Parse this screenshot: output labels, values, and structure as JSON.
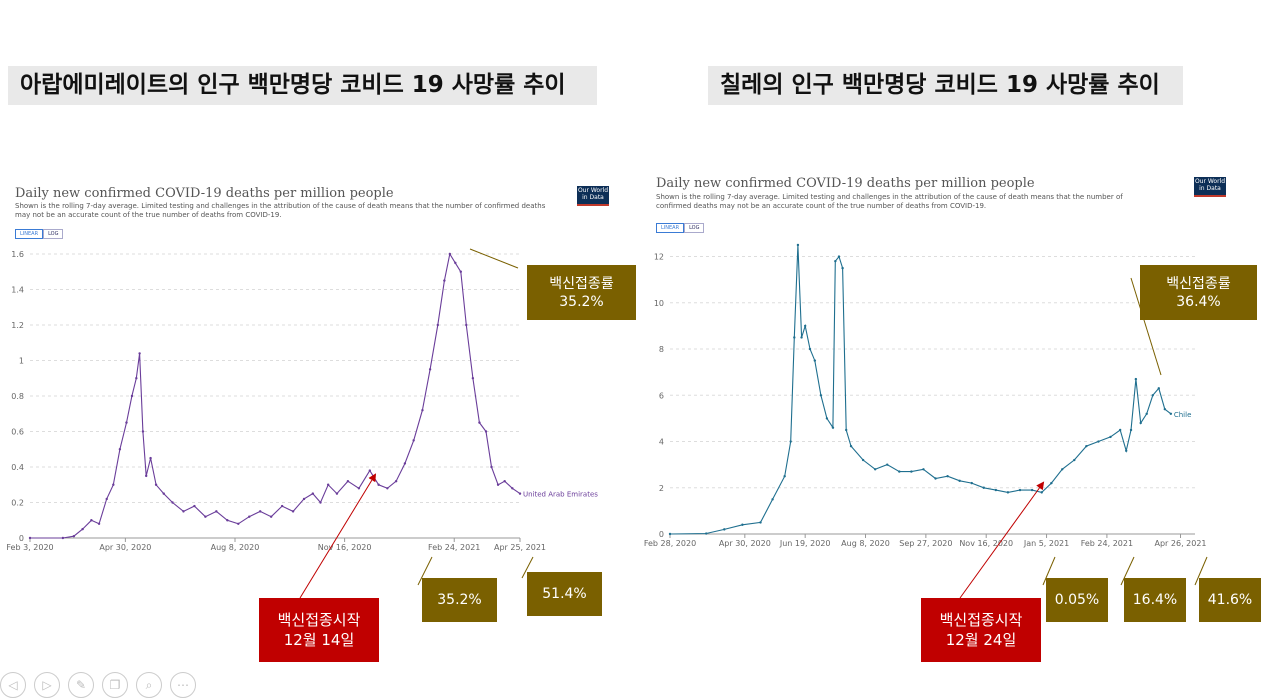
{
  "slide": {
    "title_left": "아랍에미레이트의 인구 백만명당 코비드 19 사망률 추이",
    "title_right": "칠레의 인구 백만명당 코비드 19 사망률 추이"
  },
  "callouts_left": {
    "vaccine_rate_label": "백신접종률",
    "vaccine_rate_value": "35.2%",
    "start_label": "백신접종시작",
    "start_date": "12월 14일",
    "feb_value": "35.2%",
    "apr_value": "51.4%"
  },
  "callouts_right": {
    "vaccine_rate_label": "백신접종률",
    "vaccine_rate_value": "36.4%",
    "start_label": "백신접종시작",
    "start_date": "12월 24일",
    "jan_value": "0.05%",
    "feb_value": "16.4%",
    "apr_value": "41.6%"
  },
  "colors": {
    "uae_line": "#6a3d9a",
    "chile_line": "#1f6f8f",
    "callout_gold": "#7a6000",
    "callout_red": "#c00000"
  },
  "chart_data": [
    {
      "type": "line",
      "title": "Daily new confirmed COVID-19 deaths per million people",
      "subtitle": "Shown is the rolling 7-day average. Limited testing and challenges in the attribution of the cause of death means that the number of confirmed deaths may not be an accurate count of the true number of deaths from COVID-19.",
      "logo": "Our World in Data",
      "toggle": [
        "LINEAR",
        "LOG"
      ],
      "series_label": "United Arab Emirates",
      "x_ticks": [
        "Feb 3, 2020",
        "Apr 30, 2020",
        "Aug 8, 2020",
        "Nov 16, 2020",
        "Feb 24, 2021",
        "Apr 25, 2021"
      ],
      "x_tick_days": [
        0,
        87,
        187,
        287,
        387,
        447
      ],
      "y_ticks": [
        "0",
        "0.2",
        "0.4",
        "0.6",
        "0.8",
        "1",
        "1.2",
        "1.4",
        "1.6"
      ],
      "ylim": [
        0,
        1.6
      ],
      "xlim_days": [
        0,
        447
      ],
      "points": [
        [
          0,
          0
        ],
        [
          30,
          0
        ],
        [
          40,
          0.01
        ],
        [
          48,
          0.05
        ],
        [
          56,
          0.1
        ],
        [
          63,
          0.08
        ],
        [
          70,
          0.22
        ],
        [
          76,
          0.3
        ],
        [
          82,
          0.5
        ],
        [
          88,
          0.65
        ],
        [
          93,
          0.8
        ],
        [
          97,
          0.9
        ],
        [
          100,
          1.04
        ],
        [
          103,
          0.6
        ],
        [
          106,
          0.35
        ],
        [
          110,
          0.45
        ],
        [
          115,
          0.3
        ],
        [
          122,
          0.25
        ],
        [
          130,
          0.2
        ],
        [
          140,
          0.15
        ],
        [
          150,
          0.18
        ],
        [
          160,
          0.12
        ],
        [
          170,
          0.15
        ],
        [
          180,
          0.1
        ],
        [
          190,
          0.08
        ],
        [
          200,
          0.12
        ],
        [
          210,
          0.15
        ],
        [
          220,
          0.12
        ],
        [
          230,
          0.18
        ],
        [
          240,
          0.15
        ],
        [
          250,
          0.22
        ],
        [
          258,
          0.25
        ],
        [
          265,
          0.2
        ],
        [
          272,
          0.3
        ],
        [
          280,
          0.25
        ],
        [
          290,
          0.32
        ],
        [
          300,
          0.28
        ],
        [
          310,
          0.38
        ],
        [
          318,
          0.3
        ],
        [
          326,
          0.28
        ],
        [
          334,
          0.32
        ],
        [
          342,
          0.42
        ],
        [
          350,
          0.55
        ],
        [
          358,
          0.72
        ],
        [
          365,
          0.95
        ],
        [
          372,
          1.2
        ],
        [
          378,
          1.45
        ],
        [
          383,
          1.6
        ],
        [
          388,
          1.55
        ],
        [
          393,
          1.5
        ],
        [
          398,
          1.2
        ],
        [
          404,
          0.9
        ],
        [
          410,
          0.65
        ],
        [
          416,
          0.6
        ],
        [
          421,
          0.4
        ],
        [
          427,
          0.3
        ],
        [
          433,
          0.32
        ],
        [
          440,
          0.28
        ],
        [
          447,
          0.25
        ]
      ]
    },
    {
      "type": "line",
      "title": "Daily new confirmed COVID-19 deaths per million people",
      "subtitle": "Shown is the rolling 7-day average. Limited testing and challenges in the attribution of the cause of death means that the number of confirmed deaths may not be an accurate count of the true number of deaths from COVID-19.",
      "logo": "Our World in Data",
      "toggle": [
        "LINEAR",
        "LOG"
      ],
      "series_label": "Chile",
      "x_ticks": [
        "Feb 28, 2020",
        "Apr 30, 2020",
        "Jun 19, 2020",
        "Aug 8, 2020",
        "Sep 27, 2020",
        "Nov 16, 2020",
        "Jan 5, 2021",
        "Feb 24, 2021",
        "Apr 26, 2021"
      ],
      "x_tick_days": [
        0,
        62,
        112,
        162,
        212,
        262,
        312,
        362,
        423
      ],
      "y_ticks": [
        "0",
        "2",
        "4",
        "6",
        "8",
        "10",
        "12"
      ],
      "ylim": [
        0,
        12.5
      ],
      "xlim_days": [
        0,
        435
      ],
      "points": [
        [
          0,
          0
        ],
        [
          30,
          0.02
        ],
        [
          45,
          0.2
        ],
        [
          60,
          0.4
        ],
        [
          75,
          0.5
        ],
        [
          85,
          1.5
        ],
        [
          95,
          2.5
        ],
        [
          100,
          4
        ],
        [
          103,
          8.5
        ],
        [
          106,
          12.5
        ],
        [
          109,
          8.5
        ],
        [
          112,
          9
        ],
        [
          116,
          8
        ],
        [
          120,
          7.5
        ],
        [
          125,
          6
        ],
        [
          130,
          5
        ],
        [
          135,
          4.6
        ],
        [
          137,
          11.8
        ],
        [
          140,
          12
        ],
        [
          143,
          11.5
        ],
        [
          146,
          4.5
        ],
        [
          150,
          3.8
        ],
        [
          160,
          3.2
        ],
        [
          170,
          2.8
        ],
        [
          180,
          3
        ],
        [
          190,
          2.7
        ],
        [
          200,
          2.7
        ],
        [
          210,
          2.8
        ],
        [
          220,
          2.4
        ],
        [
          230,
          2.5
        ],
        [
          240,
          2.3
        ],
        [
          250,
          2.2
        ],
        [
          260,
          2.0
        ],
        [
          270,
          1.9
        ],
        [
          280,
          1.8
        ],
        [
          290,
          1.9
        ],
        [
          300,
          1.9
        ],
        [
          308,
          1.8
        ],
        [
          316,
          2.2
        ],
        [
          325,
          2.8
        ],
        [
          335,
          3.2
        ],
        [
          345,
          3.8
        ],
        [
          355,
          4.0
        ],
        [
          365,
          4.2
        ],
        [
          373,
          4.5
        ],
        [
          378,
          3.6
        ],
        [
          382,
          4.5
        ],
        [
          386,
          6.7
        ],
        [
          390,
          4.8
        ],
        [
          395,
          5.2
        ],
        [
          400,
          6.0
        ],
        [
          405,
          6.3
        ],
        [
          410,
          5.4
        ],
        [
          415,
          5.2
        ]
      ]
    }
  ],
  "nav": [
    "prev-icon",
    "next-icon",
    "pen-icon",
    "copy-icon",
    "zoom-icon",
    "more-icon"
  ]
}
